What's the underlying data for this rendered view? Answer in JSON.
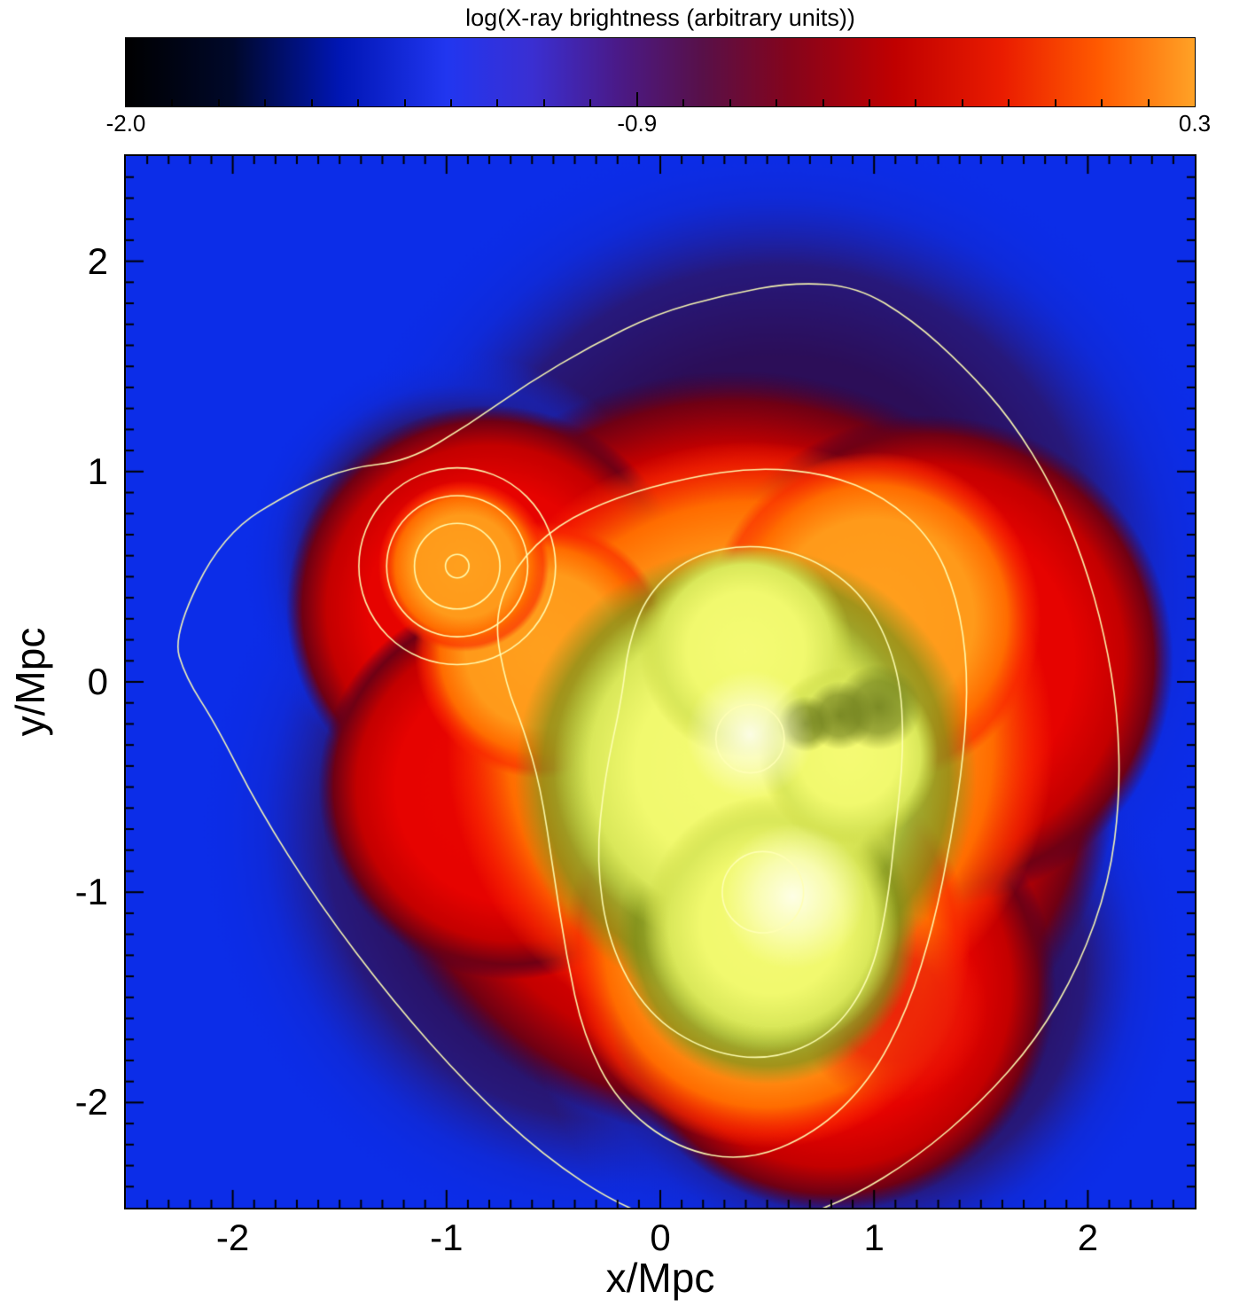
{
  "chart_data": {
    "type": "heatmap",
    "title": "",
    "xlabel": "x/Mpc",
    "ylabel": "y/Mpc",
    "xlim": [
      -2.5,
      2.5
    ],
    "ylim": [
      -2.5,
      2.5
    ],
    "xticks": {
      "values": [
        -2,
        -1,
        0,
        1,
        2
      ],
      "labels": [
        "-2",
        "-1",
        "0",
        "1",
        "2"
      ],
      "minor_step": 0.1
    },
    "yticks": {
      "values": [
        -2,
        -1,
        0,
        1,
        2
      ],
      "labels": [
        "-2",
        "-1",
        "0",
        "1",
        "2"
      ],
      "minor_step": 0.1
    },
    "colorbar": {
      "title": "log(X-ray brightness (arbitrary units))",
      "min": -2.0,
      "max": 0.3,
      "tick_values": [
        -2.0,
        -0.9,
        0.3
      ],
      "tick_labels": [
        "-2.0",
        "-0.9",
        "0.3"
      ],
      "gradient_stops": [
        [
          0,
          "#000000"
        ],
        [
          0.1,
          "#00082a"
        ],
        [
          0.2,
          "#0016b4"
        ],
        [
          0.3,
          "#2136f0"
        ],
        [
          0.38,
          "#3a2fd2"
        ],
        [
          0.46,
          "#4a1a88"
        ],
        [
          0.54,
          "#581048"
        ],
        [
          0.62,
          "#84041c"
        ],
        [
          0.72,
          "#c00000"
        ],
        [
          0.82,
          "#ea1c00"
        ],
        [
          0.91,
          "#ff5a00"
        ],
        [
          1,
          "#ffa226"
        ]
      ]
    },
    "map": {
      "background": "#0c2de8",
      "palettes": {
        "halo": [
          [
            0,
            "#2c0e58"
          ],
          [
            0.5,
            "#2c0e58"
          ],
          [
            0.7,
            "#27197c"
          ],
          [
            0.85,
            "rgba(18,40,205,0.55)"
          ],
          [
            1,
            "rgba(12,45,232,0)"
          ]
        ],
        "red": [
          [
            0,
            "#ea0600"
          ],
          [
            0.6,
            "#e60300"
          ],
          [
            0.8,
            "#c40000"
          ],
          [
            0.92,
            "#700014"
          ],
          [
            1,
            "rgba(70,0,45,0)"
          ]
        ],
        "orange": [
          [
            0,
            "#ffa01e"
          ],
          [
            0.6,
            "#ff9a1a"
          ],
          [
            0.8,
            "#ff6c00"
          ],
          [
            0.93,
            "rgba(250,42,0,0.65)"
          ],
          [
            1,
            "rgba(250,42,0,0)"
          ]
        ],
        "redpatch": [
          [
            0,
            "rgba(236,32,8,0.95)"
          ],
          [
            0.55,
            "rgba(236,32,8,0.8)"
          ],
          [
            1,
            "rgba(236,32,8,0)"
          ]
        ],
        "olive": [
          [
            0,
            "#d6e250"
          ],
          [
            0.5,
            "#ccdc4a"
          ],
          [
            0.72,
            "#a2b236"
          ],
          [
            0.88,
            "rgba(124,144,26,0.7)"
          ],
          [
            1,
            "rgba(124,144,26,0)"
          ]
        ],
        "yellow": [
          [
            0,
            "#f5fb74"
          ],
          [
            0.55,
            "#f1f96e"
          ],
          [
            0.8,
            "#dae85a"
          ],
          [
            1,
            "rgba(202,216,66,0)"
          ]
        ],
        "white": [
          [
            0,
            "rgba(255,255,240,0.92)"
          ],
          [
            0.5,
            "rgba(255,255,230,0.55)"
          ],
          [
            1,
            "rgba(255,255,222,0)"
          ]
        ],
        "notch": [
          [
            0,
            "rgba(112,128,30,0.9)"
          ],
          [
            0.6,
            "rgba(112,128,30,0.65)"
          ],
          [
            1,
            "rgba(112,128,30,0)"
          ]
        ]
      },
      "blobs": [
        {
          "cx": 0.55,
          "cy": 0.45,
          "r": 2.15,
          "palette": "halo"
        },
        {
          "cx": -0.2,
          "cy": -0.7,
          "r": 1.95,
          "palette": "halo"
        },
        {
          "cx": 0.9,
          "cy": -1.35,
          "r": 1.55,
          "palette": "halo"
        },
        {
          "cx": -0.95,
          "cy": 0.55,
          "r": 1.0,
          "palette": "halo"
        },
        {
          "cx": 0.35,
          "cy": -0.35,
          "r": 1.8,
          "palette": "red"
        },
        {
          "cx": -0.8,
          "cy": 0.35,
          "r": 0.95,
          "palette": "red"
        },
        {
          "cx": 0.8,
          "cy": -1.45,
          "r": 1.05,
          "palette": "red"
        },
        {
          "cx": 1.25,
          "cy": 0.1,
          "r": 1.15,
          "palette": "red"
        },
        {
          "cx": -0.7,
          "cy": -0.5,
          "r": 0.9,
          "palette": "red"
        },
        {
          "cx": 0.42,
          "cy": -0.3,
          "r": 1.42,
          "palette": "orange"
        },
        {
          "cx": 0.5,
          "cy": -1.25,
          "r": 0.95,
          "palette": "orange"
        },
        {
          "cx": 1.0,
          "cy": 0.3,
          "r": 0.78,
          "palette": "orange"
        },
        {
          "cx": -0.55,
          "cy": 0.15,
          "r": 0.6,
          "palette": "orange"
        },
        {
          "cx": -0.92,
          "cy": 0.55,
          "r": 0.4,
          "palette": "orange"
        },
        {
          "cx": 1.08,
          "cy": -1.55,
          "r": 0.45,
          "palette": "redpatch"
        },
        {
          "cx": 0.4,
          "cy": -0.45,
          "r": 1.08,
          "palette": "olive"
        },
        {
          "cx": 0.5,
          "cy": -1.2,
          "r": 0.7,
          "palette": "olive"
        },
        {
          "cx": 0.35,
          "cy": -0.4,
          "r": 0.85,
          "palette": "yellow"
        },
        {
          "cx": 0.52,
          "cy": -1.15,
          "r": 0.6,
          "palette": "yellow"
        },
        {
          "cx": 0.4,
          "cy": 0.15,
          "r": 0.5,
          "palette": "yellow"
        },
        {
          "cx": 0.88,
          "cy": -0.35,
          "r": 0.42,
          "palette": "yellow"
        },
        {
          "cx": 1.02,
          "cy": -0.12,
          "r": 0.2,
          "palette": "notch"
        },
        {
          "cx": 0.84,
          "cy": -0.16,
          "r": 0.16,
          "palette": "notch"
        },
        {
          "cx": 0.68,
          "cy": -0.2,
          "r": 0.13,
          "palette": "notch"
        },
        {
          "cx": 0.42,
          "cy": -0.25,
          "r": 0.3,
          "palette": "white"
        },
        {
          "cx": 0.62,
          "cy": -1.02,
          "r": 0.34,
          "palette": "white"
        }
      ],
      "contours": {
        "color": "rgba(255,255,180,0.95)",
        "width": 1.6,
        "paths": [
          [
            [
              -2.28,
              0.22
            ],
            [
              -2.05,
              0.7
            ],
            [
              -1.7,
              0.92
            ],
            [
              -1.45,
              1.02
            ],
            [
              -1.18,
              1.05
            ],
            [
              -0.9,
              1.22
            ],
            [
              -0.62,
              1.42
            ],
            [
              -0.32,
              1.6
            ],
            [
              -0.02,
              1.75
            ],
            [
              0.3,
              1.84
            ],
            [
              0.62,
              1.9
            ],
            [
              0.92,
              1.88
            ],
            [
              1.18,
              1.72
            ],
            [
              1.42,
              1.5
            ],
            [
              1.64,
              1.25
            ],
            [
              1.84,
              0.92
            ],
            [
              1.98,
              0.58
            ],
            [
              2.08,
              0.22
            ],
            [
              2.14,
              -0.15
            ],
            [
              2.15,
              -0.55
            ],
            [
              2.1,
              -0.95
            ],
            [
              1.96,
              -1.35
            ],
            [
              1.76,
              -1.7
            ],
            [
              1.5,
              -2.0
            ],
            [
              1.2,
              -2.26
            ],
            [
              0.88,
              -2.46
            ],
            [
              0.55,
              -2.58
            ],
            [
              0.2,
              -2.62
            ],
            [
              -0.18,
              -2.5
            ],
            [
              -0.55,
              -2.25
            ],
            [
              -0.9,
              -1.92
            ],
            [
              -1.25,
              -1.52
            ],
            [
              -1.6,
              -1.05
            ],
            [
              -1.88,
              -0.6
            ],
            [
              -2.08,
              -0.2
            ],
            [
              -2.22,
              0.02
            ]
          ],
          [
            [
              -0.72,
              -0.02
            ],
            [
              -0.78,
              0.3
            ],
            [
              -0.68,
              0.55
            ],
            [
              -0.48,
              0.75
            ],
            [
              -0.2,
              0.88
            ],
            [
              0.12,
              0.97
            ],
            [
              0.45,
              1.02
            ],
            [
              0.78,
              0.99
            ],
            [
              1.05,
              0.88
            ],
            [
              1.27,
              0.68
            ],
            [
              1.39,
              0.4
            ],
            [
              1.44,
              0.05
            ],
            [
              1.42,
              -0.35
            ],
            [
              1.36,
              -0.75
            ],
            [
              1.28,
              -1.15
            ],
            [
              1.16,
              -1.55
            ],
            [
              0.98,
              -1.9
            ],
            [
              0.72,
              -2.15
            ],
            [
              0.4,
              -2.28
            ],
            [
              0.08,
              -2.22
            ],
            [
              -0.2,
              -2.0
            ],
            [
              -0.36,
              -1.68
            ],
            [
              -0.44,
              -1.3
            ],
            [
              -0.5,
              -0.9
            ],
            [
              -0.56,
              -0.5
            ],
            [
              -0.64,
              -0.22
            ]
          ],
          [
            [
              -0.18,
              -0.08
            ],
            [
              -0.26,
              -0.45
            ],
            [
              -0.3,
              -0.85
            ],
            [
              -0.24,
              -1.25
            ],
            [
              -0.06,
              -1.58
            ],
            [
              0.22,
              -1.76
            ],
            [
              0.52,
              -1.8
            ],
            [
              0.8,
              -1.68
            ],
            [
              0.98,
              -1.42
            ],
            [
              1.06,
              -1.08
            ],
            [
              1.1,
              -0.7
            ],
            [
              1.14,
              -0.32
            ],
            [
              1.12,
              0.05
            ],
            [
              0.98,
              0.38
            ],
            [
              0.74,
              0.58
            ],
            [
              0.44,
              0.66
            ],
            [
              0.14,
              0.6
            ],
            [
              -0.06,
              0.42
            ],
            [
              -0.15,
              0.18
            ]
          ]
        ],
        "circles": [
          {
            "cx": -0.95,
            "cy": 0.55,
            "r": 0.46
          },
          {
            "cx": -0.95,
            "cy": 0.55,
            "r": 0.33
          },
          {
            "cx": -0.95,
            "cy": 0.55,
            "r": 0.2
          },
          {
            "cx": -0.95,
            "cy": 0.55,
            "r": 0.055
          },
          {
            "cx": 0.42,
            "cy": -0.27,
            "r": 0.16
          },
          {
            "cx": 0.48,
            "cy": -1.0,
            "r": 0.19
          }
        ]
      }
    }
  }
}
